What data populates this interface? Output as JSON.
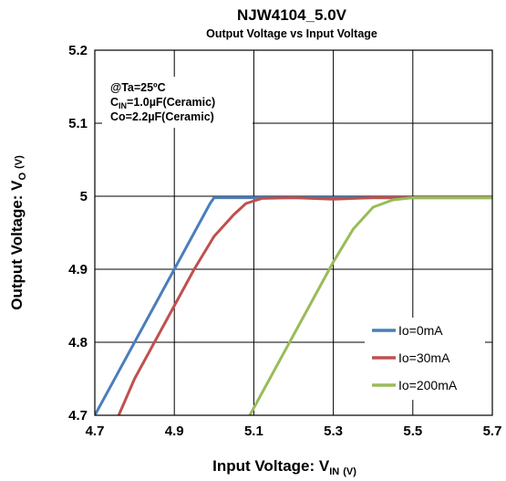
{
  "chart_data": {
    "type": "line",
    "title": "NJW4104_5.0V",
    "subtitle": "Output Voltage vs Input Voltage",
    "xlabel": "Input Voltage: V",
    "xlabel_sub": "IN",
    "xlabel_unit": "(V)",
    "ylabel": "Output Voltage: V",
    "ylabel_sub": "O",
    "ylabel_unit": "(V)",
    "xlim": [
      4.7,
      5.7
    ],
    "ylim": [
      4.7,
      5.2
    ],
    "x_ticks": [
      "4.7",
      "4.9",
      "5.1",
      "5.3",
      "5.5",
      "5.7"
    ],
    "y_ticks": [
      "4.7",
      "4.8",
      "4.9",
      "5",
      "5.1",
      "5.2"
    ],
    "grid": true,
    "legend_position": "bottom-right",
    "conditions": {
      "line1": "@Ta=25ºC",
      "line2_prefix": "C",
      "line2_sub": "IN",
      "line2_suffix": "=1.0µF(Ceramic)",
      "line3": "Co=2.2µF(Ceramic)"
    },
    "series": [
      {
        "name": "Io=0mA",
        "color": "#4a7ebb",
        "points": [
          [
            4.7,
            4.7
          ],
          [
            4.8,
            4.8
          ],
          [
            4.9,
            4.9
          ],
          [
            4.99,
            4.99
          ],
          [
            5.0,
            4.998
          ],
          [
            5.1,
            4.998
          ],
          [
            5.3,
            4.998
          ],
          [
            5.5,
            4.998
          ],
          [
            5.7,
            4.998
          ]
        ]
      },
      {
        "name": "Io=30mA",
        "color": "#c0504d",
        "points": [
          [
            4.76,
            4.7
          ],
          [
            4.8,
            4.75
          ],
          [
            4.85,
            4.8
          ],
          [
            4.9,
            4.85
          ],
          [
            4.95,
            4.9
          ],
          [
            5.0,
            4.945
          ],
          [
            5.05,
            4.975
          ],
          [
            5.08,
            4.99
          ],
          [
            5.12,
            4.997
          ],
          [
            5.2,
            4.998
          ],
          [
            5.3,
            4.996
          ],
          [
            5.4,
            4.998
          ],
          [
            5.5,
            4.998
          ],
          [
            5.6,
            4.998
          ],
          [
            5.7,
            4.998
          ]
        ]
      },
      {
        "name": "Io=200mA",
        "color": "#9bbb59",
        "points": [
          [
            5.09,
            4.7
          ],
          [
            5.15,
            4.76
          ],
          [
            5.2,
            4.81
          ],
          [
            5.25,
            4.86
          ],
          [
            5.3,
            4.91
          ],
          [
            5.35,
            4.955
          ],
          [
            5.4,
            4.985
          ],
          [
            5.45,
            4.995
          ],
          [
            5.5,
            4.998
          ],
          [
            5.6,
            4.998
          ],
          [
            5.7,
            4.998
          ]
        ]
      }
    ]
  }
}
